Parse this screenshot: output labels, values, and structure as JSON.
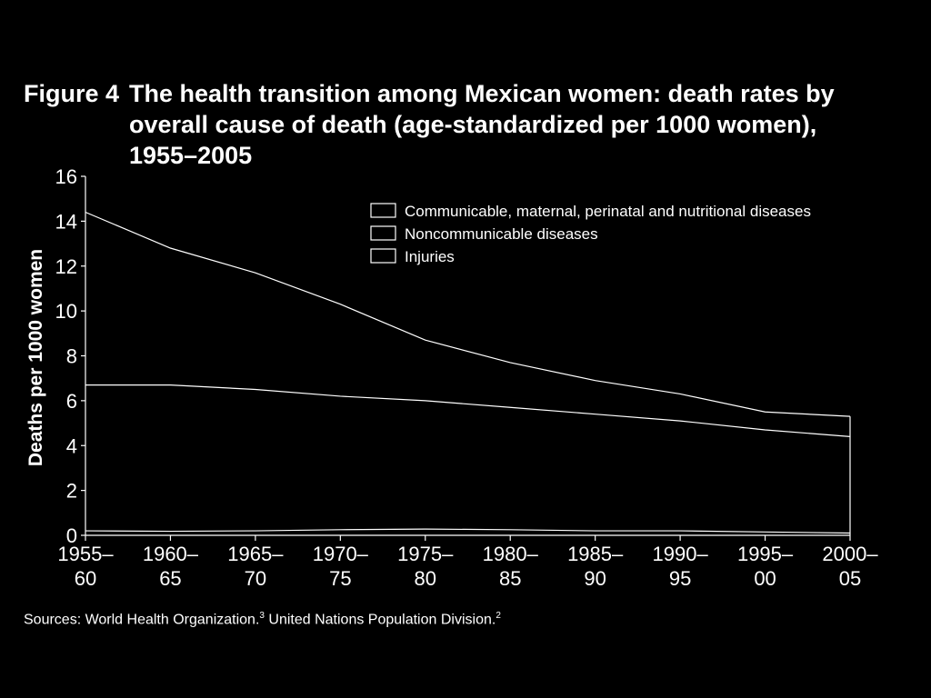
{
  "figure": {
    "number": "Figure 4",
    "title": "The health transition among Mexican women: death rates by overall cause of death (age-standardized per 1000 women), 1955–2005"
  },
  "source": {
    "text": "Sources: World Health Organization.",
    "ref1": "3",
    "text2": " United Nations Population Division.",
    "ref2": "2"
  },
  "chart_data": {
    "type": "area",
    "stacked": true,
    "ylabel": "Deaths per 1000 women",
    "ylim": [
      0,
      16
    ],
    "yticks": [
      0,
      2,
      4,
      6,
      8,
      10,
      12,
      14,
      16
    ],
    "categories": [
      [
        "1955–",
        "60"
      ],
      [
        "1960–",
        "65"
      ],
      [
        "1965–",
        "70"
      ],
      [
        "1970–",
        "75"
      ],
      [
        "1975–",
        "80"
      ],
      [
        "1980–",
        "85"
      ],
      [
        "1985–",
        "90"
      ],
      [
        "1990–",
        "95"
      ],
      [
        "1995–",
        "00"
      ],
      [
        "2000–",
        "05"
      ]
    ],
    "legend_position": "top-right",
    "series": [
      {
        "name": "Injuries",
        "cumulative": [
          0.2,
          0.18,
          0.2,
          0.25,
          0.28,
          0.25,
          0.2,
          0.2,
          0.15,
          0.1
        ]
      },
      {
        "name": "Noncommunicable diseases",
        "cumulative": [
          6.7,
          6.7,
          6.5,
          6.2,
          6.0,
          5.7,
          5.4,
          5.1,
          4.7,
          4.4
        ]
      },
      {
        "name": "Communicable, maternal, perinatal and nutritional diseases",
        "cumulative": [
          14.4,
          12.8,
          11.7,
          10.3,
          8.7,
          7.7,
          6.9,
          6.3,
          5.5,
          5.3
        ]
      }
    ],
    "legend_order": [
      "Communicable, maternal, perinatal and nutritional diseases",
      "Noncommunicable diseases",
      "Injuries"
    ],
    "colors": {
      "background": "#000000",
      "lines": "#ffffff"
    }
  }
}
